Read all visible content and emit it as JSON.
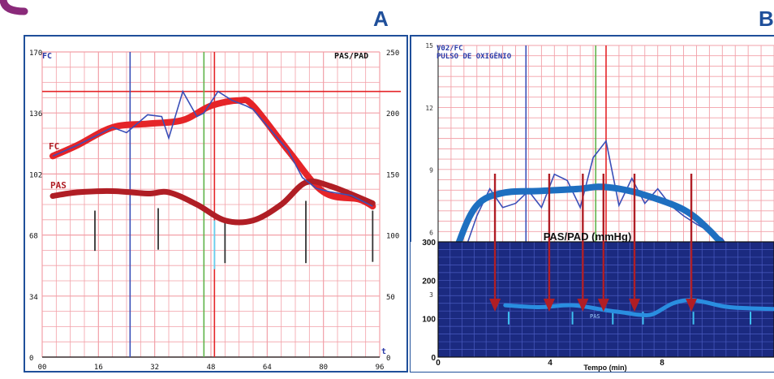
{
  "colors": {
    "grid": "#f2a0a8",
    "panel_border": "#1f4f9a",
    "fc_thick": "#e52428",
    "pas_thick": "#b01e25",
    "raw_line": "#3a4fb8",
    "vo2_thick": "#1e6fc0",
    "arrow": "#b01e25",
    "navy_bg": "#1b2a80",
    "navy_grid": "#4a5bc0",
    "vline_blue": "#3a4fb8",
    "vline_green": "#5fb34a",
    "vline_red": "#e52428",
    "logo_arc": "#8a2a7a"
  },
  "panel_a": {
    "letter": "A",
    "left_axis_title": "FC",
    "right_axis_title": "PAS/PAD",
    "fc_label": "FC",
    "pas_label": "PAS",
    "corner_label": "t",
    "left_ticks": [
      "170",
      "136",
      "102",
      "68",
      "34",
      "0"
    ],
    "right_ticks": [
      "250",
      "200",
      "150",
      "100",
      "50",
      "0"
    ],
    "x_ticks": [
      "00",
      "16",
      "32",
      "48",
      "64",
      "80",
      "96"
    ]
  },
  "panel_b": {
    "letter": "B",
    "title_line1": "V02/FC",
    "title_line2": "PULSO DE OXIGÊNIO",
    "y_ticks": [
      "15",
      "12",
      "9",
      "6",
      "3"
    ],
    "lower_title": "PAS/PAD (mmHg)",
    "lower_y_ticks": [
      "300",
      "200",
      "100",
      "0"
    ],
    "x_ticks": [
      "0",
      "4",
      "8"
    ],
    "x_title": "Tempo (min)",
    "pas_label": "PAS"
  },
  "chart_data": [
    {
      "type": "line",
      "xlim": [
        0,
        96
      ],
      "ylim_left": [
        0,
        170
      ],
      "ylim_right": [
        0,
        250
      ],
      "grid": true,
      "series": [
        {
          "name": "FC",
          "axis": "left",
          "x": [
            3,
            10,
            20,
            30,
            40,
            48,
            56,
            60,
            70,
            80,
            90,
            94
          ],
          "y": [
            112,
            118,
            128,
            130,
            132,
            140,
            143,
            140,
            115,
            92,
            88,
            84
          ]
        },
        {
          "name": "PAS",
          "axis": "right",
          "x": [
            3,
            10,
            20,
            30,
            36,
            44,
            52,
            60,
            68,
            75,
            82,
            94
          ],
          "y": [
            132,
            135,
            136,
            134,
            135,
            125,
            112,
            112,
            125,
            143,
            140,
            126
          ]
        }
      ],
      "raw_trace": {
        "x": [
          3,
          10,
          20,
          24,
          30,
          34,
          36,
          40,
          44,
          46,
          50,
          54,
          58,
          60,
          70,
          74,
          78,
          82,
          88,
          94
        ],
        "y": [
          112,
          118,
          128,
          125,
          135,
          134,
          122,
          148,
          134,
          136,
          148,
          143,
          140,
          138,
          115,
          100,
          94,
          92,
          90,
          84
        ]
      },
      "pad_bars": {
        "x": [
          15,
          33,
          52,
          75,
          94
        ],
        "y_top": [
          120,
          122,
          112,
          128,
          120
        ],
        "y_bottom": [
          87,
          88,
          77,
          77,
          78
        ]
      },
      "pad_bar_cyan": {
        "x": 49,
        "y_top": 112,
        "y_bottom": 72
      },
      "vlines": [
        {
          "x": 25,
          "color": "blue"
        },
        {
          "x": 46,
          "color": "green"
        },
        {
          "x": 49,
          "color": "red"
        }
      ],
      "hline_left_y": 148
    },
    {
      "type": "line",
      "xlim": [
        0,
        13
      ],
      "ylim": [
        0,
        15
      ],
      "grid": true,
      "series": [
        {
          "name": "VO2/FC",
          "x": [
            0.3,
            0.8,
            1.5,
            2.5,
            4,
            5.5,
            6.2,
            7,
            8,
            9.5,
            10.5,
            11.5,
            12.3
          ],
          "y": [
            3.3,
            5.5,
            7.3,
            7.9,
            8.0,
            8.1,
            8.2,
            8.1,
            7.8,
            7.1,
            6.1,
            4.7,
            3.5
          ]
        }
      ],
      "raw_trace": {
        "x": [
          0.3,
          1,
          1.5,
          2,
          2.5,
          3,
          3.5,
          4,
          4.5,
          5,
          5.5,
          6,
          6.5,
          7,
          7.5,
          8,
          8.5,
          9,
          9.5,
          10,
          11,
          12,
          12.3
        ],
        "y": [
          3.2,
          5.0,
          6.8,
          8.1,
          7.2,
          7.4,
          8.0,
          7.2,
          8.8,
          8.5,
          7.2,
          9.6,
          10.4,
          7.3,
          8.6,
          7.4,
          8.1,
          7.3,
          6.8,
          6.4,
          5.7,
          3.9,
          2.9
        ]
      },
      "vlines": [
        {
          "x": 3.4,
          "color": "blue"
        },
        {
          "x": 6.1,
          "color": "green"
        },
        {
          "x": 6.5,
          "color": "red"
        }
      ],
      "arrows_x": [
        2.2,
        4.3,
        5.6,
        6.4,
        7.6,
        9.8
      ],
      "lower_chart": {
        "title": "PAS/PAD (mmHg)",
        "ylim": [
          0,
          300
        ],
        "xlim": [
          0,
          10
        ],
        "x": [
          2.0,
          3.0,
          4.0,
          5.0,
          5.6,
          6.0,
          6.4,
          7.0,
          7.6,
          8.5,
          9.0,
          10.0
        ],
        "y": [
          135,
          130,
          135,
          122,
          115,
          110,
          112,
          140,
          148,
          132,
          128,
          125
        ],
        "tick_x": [
          2.1,
          4.0,
          5.2,
          6.1,
          7.6,
          9.3
        ]
      }
    }
  ]
}
